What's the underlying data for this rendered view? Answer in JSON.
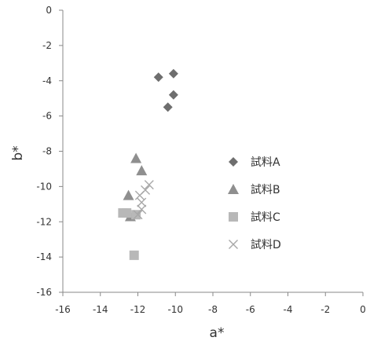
{
  "chart_data": {
    "type": "scatter",
    "title": "",
    "xlabel": "a*",
    "ylabel": "b*",
    "xlim": [
      -16,
      0
    ],
    "ylim": [
      -16,
      0
    ],
    "xticks": [
      -16,
      -14,
      -12,
      -10,
      -8,
      -6,
      -4,
      -2,
      0
    ],
    "yticks": [
      0,
      -2,
      -4,
      -6,
      -8,
      -10,
      -12,
      -14,
      -16
    ],
    "x_tick_labels": [
      "-16",
      "-14",
      "-12",
      "-10",
      "-8",
      "-6",
      "-4",
      "-2",
      "0"
    ],
    "y_tick_labels": [
      "0",
      "-2",
      "-4",
      "-6",
      "-8",
      "-10",
      "-12",
      "-14",
      "-16"
    ],
    "grid": false,
    "legend_position": "right",
    "series": [
      {
        "name": "試料A",
        "marker": "diamond",
        "color": "#6e6e6e",
        "points": [
          {
            "x": -10.9,
            "y": -3.8
          },
          {
            "x": -10.1,
            "y": -3.6
          },
          {
            "x": -10.1,
            "y": -4.8
          },
          {
            "x": -10.4,
            "y": -5.5
          }
        ]
      },
      {
        "name": "試料B",
        "marker": "triangle",
        "color": "#8f8f8f",
        "points": [
          {
            "x": -12.1,
            "y": -8.4
          },
          {
            "x": -11.8,
            "y": -9.1
          },
          {
            "x": -12.5,
            "y": -10.5
          },
          {
            "x": -12.4,
            "y": -11.7
          }
        ]
      },
      {
        "name": "試料C",
        "marker": "square",
        "color": "#b8b8b8",
        "points": [
          {
            "x": -12.8,
            "y": -11.5
          },
          {
            "x": -12.6,
            "y": -11.5
          },
          {
            "x": -12.1,
            "y": -11.6
          },
          {
            "x": -12.2,
            "y": -13.9
          }
        ]
      },
      {
        "name": "試料D",
        "marker": "cross",
        "color": "#a8a8a8",
        "points": [
          {
            "x": -11.4,
            "y": -9.9
          },
          {
            "x": -11.6,
            "y": -10.2
          },
          {
            "x": -11.9,
            "y": -10.5
          },
          {
            "x": -11.8,
            "y": -10.9
          },
          {
            "x": -11.8,
            "y": -11.3
          },
          {
            "x": -12.0,
            "y": -11.6
          }
        ]
      }
    ]
  }
}
